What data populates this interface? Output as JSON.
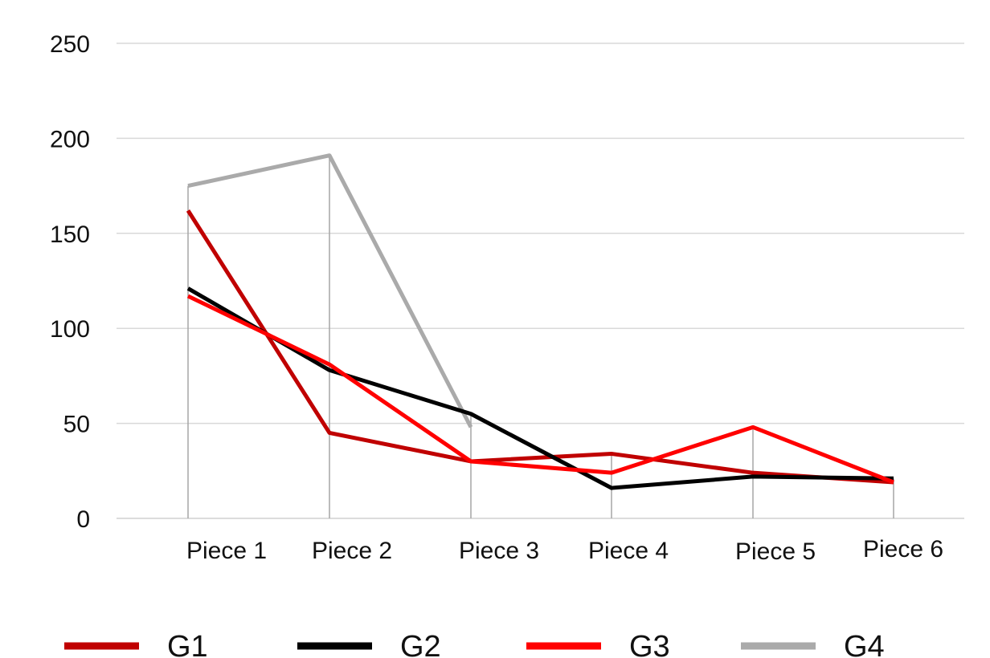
{
  "chart_data": {
    "type": "line",
    "categories": [
      "Piece 1",
      "Piece 2",
      "Piece 3",
      "Piece 4",
      "Piece 5",
      "Piece 6"
    ],
    "ylim": [
      0,
      250
    ],
    "yticks": [
      0,
      50,
      100,
      150,
      200,
      250
    ],
    "grid": true,
    "legend_position": "bottom",
    "series": [
      {
        "name": "G1",
        "color": "#c00000",
        "values": [
          162,
          45,
          30,
          34,
          24,
          19
        ]
      },
      {
        "name": "G2",
        "color": "#000000",
        "values": [
          121,
          78,
          55,
          16,
          22,
          21
        ]
      },
      {
        "name": "G3",
        "color": "#ff0000",
        "values": [
          117,
          81,
          30,
          24,
          48,
          19
        ]
      },
      {
        "name": "G4",
        "color": "#aaaaaa",
        "values": [
          175,
          191,
          48,
          null,
          null,
          null
        ]
      }
    ],
    "title": "",
    "xlabel": "",
    "ylabel": ""
  }
}
